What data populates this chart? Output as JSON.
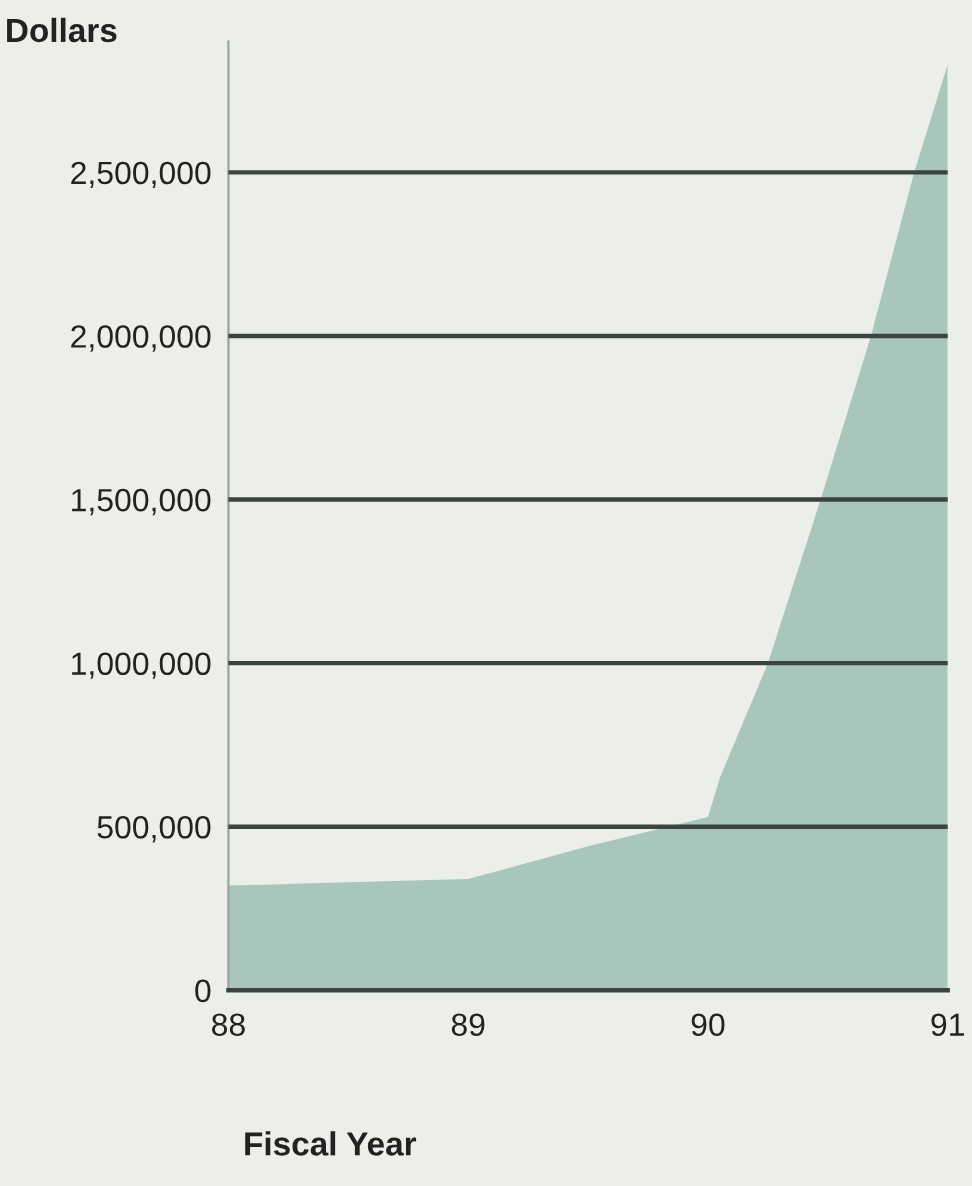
{
  "chart_data": {
    "type": "area",
    "title": "Dollars",
    "xlabel": "Fiscal Year",
    "x": [
      88,
      88.5,
      89,
      89.5,
      90,
      90.05,
      90.25,
      90.47,
      90.68,
      90.86,
      91
    ],
    "series": [
      {
        "color": "#a8c6bb",
        "values": [
          320000,
          330000,
          340000,
          440000,
          530000,
          650000,
          1000000,
          1500000,
          2000000,
          2500000,
          2830000
        ]
      }
    ],
    "xlim": [
      88,
      91
    ],
    "ylim": [
      0,
      2900000
    ],
    "xticks": [
      88,
      89,
      90,
      91
    ],
    "yticks": [
      0,
      {
        "value": 500000,
        "label": "500,000"
      },
      {
        "value": 1000000,
        "label": "1,000,000"
      },
      {
        "value": 1500000,
        "label": "1,500,000"
      },
      {
        "value": 2000000,
        "label": "2,000,000"
      },
      {
        "value": 2500000,
        "label": "2,500,000"
      }
    ],
    "grid": "y"
  }
}
